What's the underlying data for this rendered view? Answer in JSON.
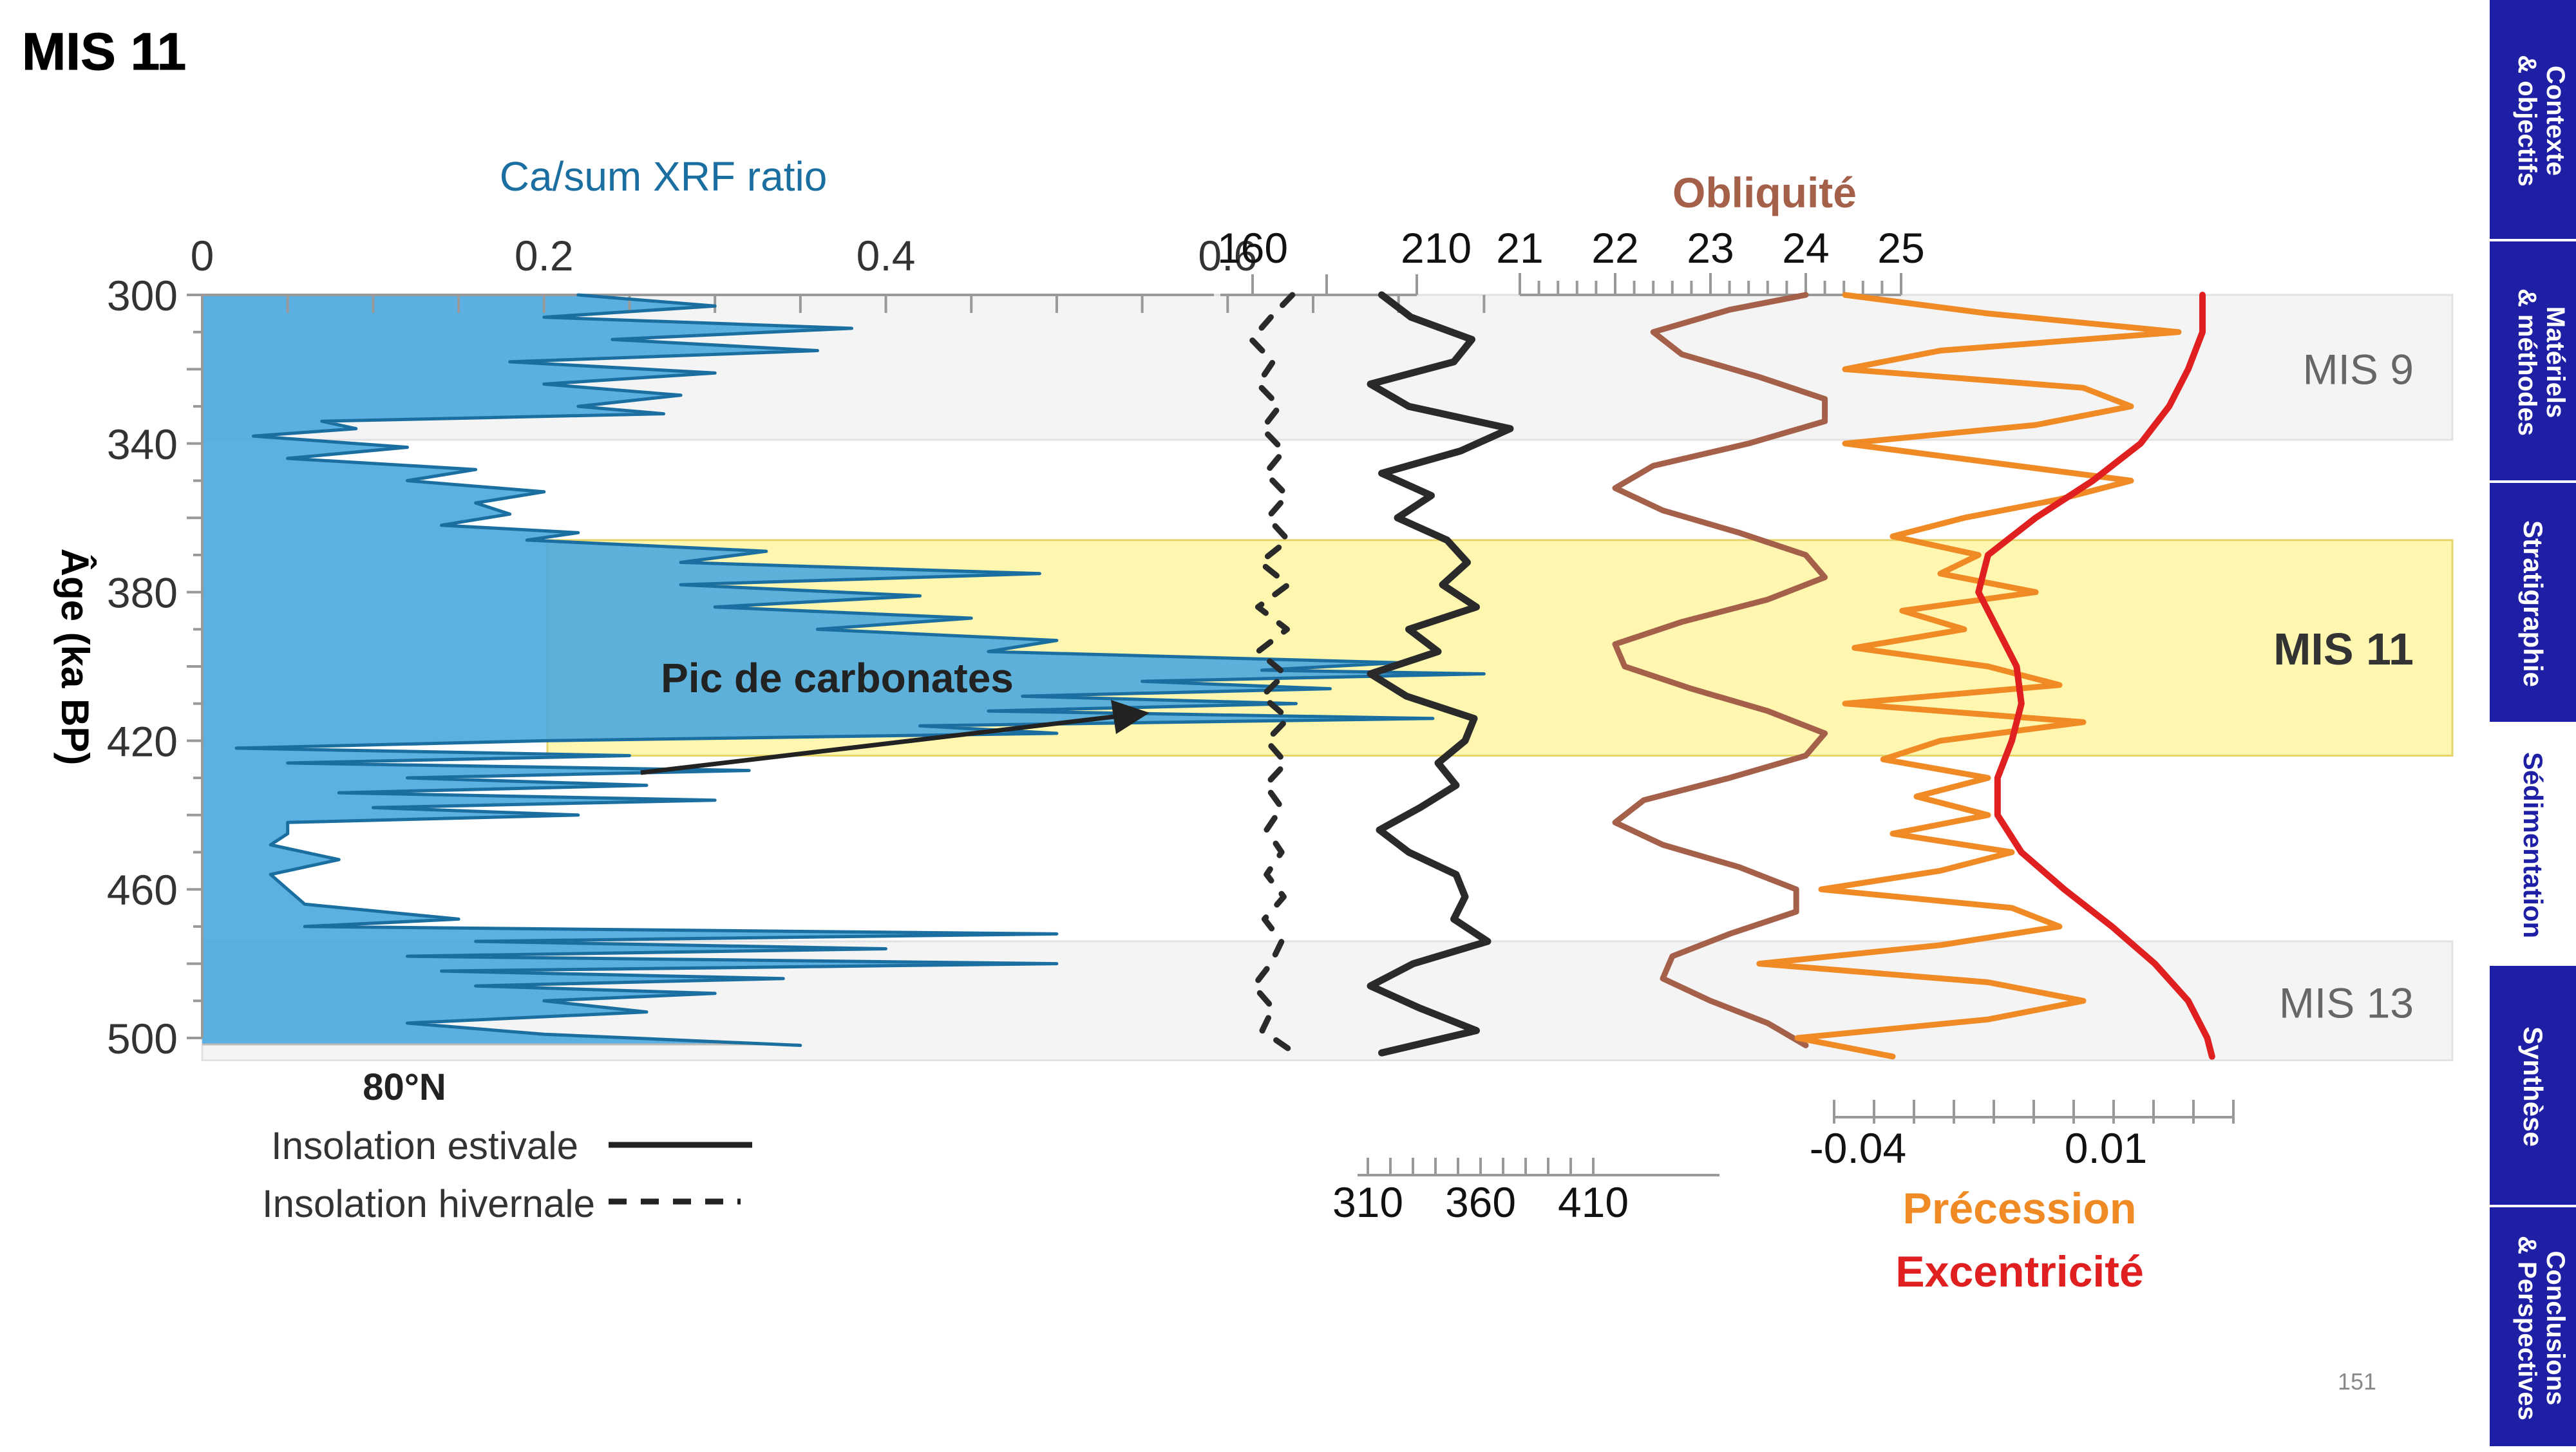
{
  "slide": {
    "title": "MIS 11",
    "page_number": "151"
  },
  "sidebar": {
    "tabs": [
      {
        "line1": "Contexte",
        "line2": "& objectifs",
        "active": false
      },
      {
        "line1": "Matériels",
        "line2": "& méthodes",
        "active": false
      },
      {
        "line1": "Stratigraphie",
        "line2": "",
        "active": false
      },
      {
        "line1": "Sédimentation",
        "line2": "",
        "active": true
      },
      {
        "line1": "Synthèse",
        "line2": "",
        "active": false
      },
      {
        "line1": "Conclusions",
        "line2": "& Perspectives",
        "active": false
      }
    ]
  },
  "colors": {
    "xrf": "#1b6fa0",
    "xrf_fill_dark": "#4aa8df",
    "insolation": "#2a2a2a",
    "obliquity": "#a5604a",
    "precession": "#ef8a24",
    "eccentricity": "#e02020",
    "mis11_band": "#fff6b0",
    "mis_band": "#f4f4f4",
    "tab_blue": "#1f1fa6"
  },
  "chart_data": {
    "type": "line",
    "y_axis": {
      "label": "Âge (ka BP)",
      "ticks": [
        "300",
        "340",
        "380",
        "420",
        "460",
        "500"
      ],
      "range": [
        300,
        500
      ],
      "inverted": true
    },
    "xrf_axis": {
      "title": "Ca/sum XRF ratio",
      "ticks": [
        "0",
        "0.2",
        "0.4",
        "0.6"
      ],
      "range": [
        0,
        0.78
      ]
    },
    "winter_insolation_axis": {
      "ticks": [
        "160"
      ]
    },
    "summer_insolation_axis": {
      "top_tick": "210",
      "bottom_ticks": [
        "310",
        "360",
        "410"
      ]
    },
    "obliquity_axis": {
      "title": "Obliquité",
      "ticks": [
        "21",
        "22",
        "23",
        "24",
        "25"
      ],
      "range": [
        21,
        25
      ]
    },
    "precession_axis": {
      "ticks": [
        "-0.04",
        "0.01"
      ]
    },
    "legend": {
      "latitude": "80°N",
      "items": [
        {
          "label": "Insolation estivale",
          "style": "solid"
        },
        {
          "label": "Insolation hivernale",
          "style": "dashed"
        }
      ],
      "precession_label": "Précession",
      "eccentricity_label": "Excentricité"
    },
    "stages": [
      {
        "name": "MIS 9",
        "from": 300,
        "to": 339,
        "highlight": false
      },
      {
        "name": "MIS 11",
        "from": 366,
        "to": 424,
        "highlight": true
      },
      {
        "name": "MIS 13",
        "from": 474,
        "to": 506,
        "highlight": false
      }
    ],
    "annotation": {
      "text": "Pic de carbonates"
    },
    "series": [
      {
        "name": "Ca/sum XRF ratio",
        "points": [
          [
            300,
            0.22
          ],
          [
            303,
            0.3
          ],
          [
            306,
            0.2
          ],
          [
            309,
            0.38
          ],
          [
            312,
            0.24
          ],
          [
            315,
            0.36
          ],
          [
            318,
            0.18
          ],
          [
            321,
            0.3
          ],
          [
            324,
            0.2
          ],
          [
            327,
            0.28
          ],
          [
            330,
            0.22
          ],
          [
            332,
            0.27
          ],
          [
            334,
            0.07
          ],
          [
            336,
            0.09
          ],
          [
            338,
            0.03
          ],
          [
            341,
            0.12
          ],
          [
            344,
            0.05
          ],
          [
            347,
            0.16
          ],
          [
            350,
            0.12
          ],
          [
            353,
            0.2
          ],
          [
            356,
            0.16
          ],
          [
            359,
            0.18
          ],
          [
            362,
            0.14
          ],
          [
            364,
            0.22
          ],
          [
            366,
            0.19
          ],
          [
            369,
            0.33
          ],
          [
            372,
            0.28
          ],
          [
            375,
            0.49
          ],
          [
            378,
            0.28
          ],
          [
            381,
            0.42
          ],
          [
            384,
            0.3
          ],
          [
            387,
            0.45
          ],
          [
            390,
            0.36
          ],
          [
            393,
            0.5
          ],
          [
            396,
            0.46
          ],
          [
            399,
            0.7
          ],
          [
            401,
            0.62
          ],
          [
            402,
            0.75
          ],
          [
            404,
            0.55
          ],
          [
            406,
            0.66
          ],
          [
            408,
            0.48
          ],
          [
            410,
            0.64
          ],
          [
            412,
            0.46
          ],
          [
            414,
            0.72
          ],
          [
            416,
            0.42
          ],
          [
            418,
            0.5
          ],
          [
            420,
            0.2
          ],
          [
            422,
            0.02
          ],
          [
            424,
            0.25
          ],
          [
            426,
            0.05
          ],
          [
            428,
            0.32
          ],
          [
            430,
            0.12
          ],
          [
            432,
            0.26
          ],
          [
            434,
            0.08
          ],
          [
            436,
            0.3
          ],
          [
            438,
            0.1
          ],
          [
            440,
            0.22
          ],
          [
            442,
            0.05
          ],
          [
            445,
            0.05
          ],
          [
            448,
            0.04
          ],
          [
            452,
            0.08
          ],
          [
            456,
            0.04
          ],
          [
            460,
            0.05
          ],
          [
            464,
            0.06
          ],
          [
            468,
            0.15
          ],
          [
            470,
            0.06
          ],
          [
            472,
            0.5
          ],
          [
            474,
            0.16
          ],
          [
            476,
            0.4
          ],
          [
            478,
            0.12
          ],
          [
            480,
            0.5
          ],
          [
            482,
            0.14
          ],
          [
            484,
            0.34
          ],
          [
            486,
            0.16
          ],
          [
            488,
            0.3
          ],
          [
            490,
            0.2
          ],
          [
            493,
            0.26
          ],
          [
            496,
            0.12
          ],
          [
            499,
            0.2
          ],
          [
            502,
            0.35
          ]
        ]
      },
      {
        "name": "Insolation hivernale",
        "points": [
          [
            300,
            200
          ],
          [
            306,
            180
          ],
          [
            312,
            162
          ],
          [
            318,
            182
          ],
          [
            324,
            168
          ],
          [
            330,
            188
          ],
          [
            336,
            172
          ],
          [
            342,
            192
          ],
          [
            348,
            175
          ],
          [
            354,
            195
          ],
          [
            360,
            177
          ],
          [
            366,
            196
          ],
          [
            372,
            170
          ],
          [
            378,
            196
          ],
          [
            384,
            168
          ],
          [
            390,
            195
          ],
          [
            396,
            168
          ],
          [
            402,
            193
          ],
          [
            408,
            172
          ],
          [
            414,
            196
          ],
          [
            420,
            176
          ],
          [
            426,
            194
          ],
          [
            432,
            175
          ],
          [
            438,
            190
          ],
          [
            444,
            176
          ],
          [
            450,
            190
          ],
          [
            456,
            176
          ],
          [
            462,
            192
          ],
          [
            468,
            174
          ],
          [
            474,
            190
          ],
          [
            480,
            180
          ],
          [
            486,
            164
          ],
          [
            492,
            182
          ],
          [
            498,
            172
          ],
          [
            504,
            202
          ]
        ]
      },
      {
        "name": "Insolation estivale",
        "points": [
          [
            300,
            323
          ],
          [
            306,
            336
          ],
          [
            312,
            363
          ],
          [
            318,
            355
          ],
          [
            324,
            318
          ],
          [
            330,
            335
          ],
          [
            336,
            380
          ],
          [
            342,
            358
          ],
          [
            348,
            323
          ],
          [
            354,
            345
          ],
          [
            360,
            330
          ],
          [
            366,
            352
          ],
          [
            372,
            361
          ],
          [
            378,
            350
          ],
          [
            384,
            365
          ],
          [
            390,
            335
          ],
          [
            396,
            348
          ],
          [
            402,
            318
          ],
          [
            408,
            334
          ],
          [
            414,
            364
          ],
          [
            420,
            360
          ],
          [
            426,
            348
          ],
          [
            432,
            356
          ],
          [
            438,
            340
          ],
          [
            444,
            322
          ],
          [
            450,
            335
          ],
          [
            456,
            356
          ],
          [
            462,
            360
          ],
          [
            468,
            355
          ],
          [
            474,
            370
          ],
          [
            480,
            337
          ],
          [
            486,
            318
          ],
          [
            492,
            340
          ],
          [
            498,
            365
          ],
          [
            504,
            323
          ]
        ]
      },
      {
        "name": "Obliquité",
        "points": [
          [
            300,
            24.0
          ],
          [
            304,
            23.2
          ],
          [
            310,
            22.4
          ],
          [
            316,
            22.7
          ],
          [
            322,
            23.5
          ],
          [
            328,
            24.2
          ],
          [
            334,
            24.2
          ],
          [
            340,
            23.4
          ],
          [
            346,
            22.4
          ],
          [
            352,
            22.0
          ],
          [
            358,
            22.5
          ],
          [
            364,
            23.3
          ],
          [
            370,
            24.0
          ],
          [
            376,
            24.2
          ],
          [
            382,
            23.6
          ],
          [
            388,
            22.7
          ],
          [
            394,
            22.0
          ],
          [
            400,
            22.1
          ],
          [
            406,
            22.8
          ],
          [
            412,
            23.6
          ],
          [
            418,
            24.2
          ],
          [
            424,
            24.0
          ],
          [
            430,
            23.2
          ],
          [
            436,
            22.3
          ],
          [
            442,
            22.0
          ],
          [
            448,
            22.5
          ],
          [
            454,
            23.3
          ],
          [
            460,
            23.9
          ],
          [
            466,
            23.9
          ],
          [
            472,
            23.2
          ],
          [
            478,
            22.6
          ],
          [
            484,
            22.5
          ],
          [
            490,
            23.0
          ],
          [
            496,
            23.6
          ],
          [
            502,
            24.0
          ]
        ]
      },
      {
        "name": "Précession",
        "points": [
          [
            300,
            -0.04
          ],
          [
            305,
            -0.01
          ],
          [
            310,
            0.03
          ],
          [
            315,
            -0.02
          ],
          [
            320,
            -0.04
          ],
          [
            325,
            0.01
          ],
          [
            330,
            0.02
          ],
          [
            335,
            0.0
          ],
          [
            340,
            -0.04
          ],
          [
            345,
            -0.01
          ],
          [
            350,
            0.02
          ],
          [
            355,
            0.005
          ],
          [
            360,
            -0.015
          ],
          [
            365,
            -0.03
          ],
          [
            370,
            -0.012
          ],
          [
            375,
            -0.02
          ],
          [
            380,
            0.0
          ],
          [
            385,
            -0.028
          ],
          [
            390,
            -0.015
          ],
          [
            395,
            -0.038
          ],
          [
            400,
            -0.01
          ],
          [
            405,
            0.005
          ],
          [
            410,
            -0.04
          ],
          [
            415,
            0.01
          ],
          [
            420,
            -0.02
          ],
          [
            425,
            -0.032
          ],
          [
            430,
            -0.01
          ],
          [
            435,
            -0.025
          ],
          [
            440,
            -0.01
          ],
          [
            445,
            -0.03
          ],
          [
            450,
            -0.005
          ],
          [
            455,
            -0.02
          ],
          [
            460,
            -0.045
          ],
          [
            465,
            -0.005
          ],
          [
            470,
            0.005
          ],
          [
            475,
            -0.02
          ],
          [
            480,
            -0.058
          ],
          [
            485,
            -0.01
          ],
          [
            490,
            0.01
          ],
          [
            495,
            -0.01
          ],
          [
            500,
            -0.05
          ],
          [
            505,
            -0.03
          ]
        ]
      },
      {
        "name": "Excentricité",
        "points": [
          [
            300,
            0.035
          ],
          [
            310,
            0.035
          ],
          [
            320,
            0.032
          ],
          [
            330,
            0.028
          ],
          [
            340,
            0.022
          ],
          [
            350,
            0.012
          ],
          [
            360,
            0.0
          ],
          [
            370,
            -0.01
          ],
          [
            380,
            -0.012
          ],
          [
            390,
            -0.008
          ],
          [
            400,
            -0.004
          ],
          [
            410,
            -0.003
          ],
          [
            420,
            -0.005
          ],
          [
            430,
            -0.008
          ],
          [
            440,
            -0.008
          ],
          [
            450,
            -0.003
          ],
          [
            460,
            0.006
          ],
          [
            470,
            0.016
          ],
          [
            480,
            0.025
          ],
          [
            490,
            0.032
          ],
          [
            500,
            0.036
          ],
          [
            505,
            0.037
          ]
        ]
      }
    ]
  }
}
